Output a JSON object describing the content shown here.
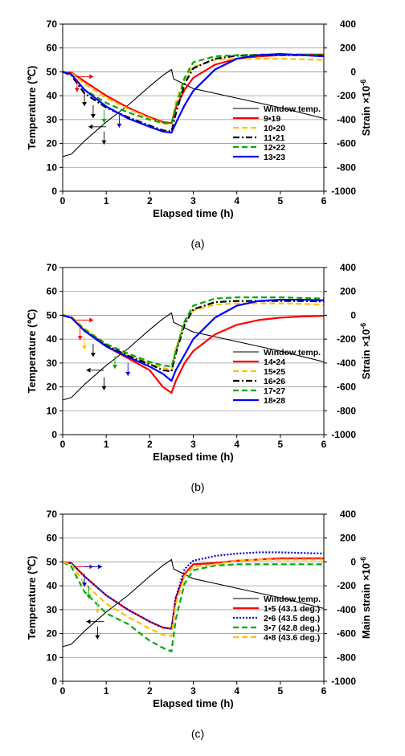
{
  "chart_data": [
    {
      "type": "line",
      "panel_label": "(a)",
      "xlabel": "Elapsed time (h)",
      "ylabel": "Temperature (℃)",
      "y2label_main": "Strain ×10",
      "y2label_exp": "-6",
      "xlim": [
        0,
        6
      ],
      "ylim": [
        0,
        70
      ],
      "y2lim": [
        -1000,
        400
      ],
      "x_ticks": [
        "0",
        "1",
        "2",
        "3",
        "4",
        "5",
        "6"
      ],
      "y_ticks": [
        "0",
        "10",
        "20",
        "30",
        "40",
        "50",
        "60",
        "70"
      ],
      "y2_ticks": [
        "-1000",
        "-800",
        "-600",
        "-400",
        "-200",
        "0",
        "200",
        "400"
      ],
      "grid": "horizontal",
      "legend_position": "right",
      "series": [
        {
          "name": "Window temp.",
          "axis": "left",
          "color": "#000000",
          "dash": "solid",
          "x": [
            0,
            0.2,
            0.5,
            1.0,
            1.5,
            2.0,
            2.3,
            2.5,
            2.55,
            3.0,
            4.0,
            5.0,
            6.0
          ],
          "y": [
            14.5,
            15.5,
            21,
            29,
            36,
            44,
            48.5,
            51,
            47,
            43,
            39,
            35,
            30.5
          ]
        },
        {
          "name": "9•19",
          "axis": "right",
          "color": "#ff0000",
          "dash": "solid",
          "x": [
            0,
            0.2,
            0.5,
            1.0,
            1.5,
            2.0,
            2.3,
            2.5,
            2.6,
            2.8,
            3.0,
            3.5,
            4.0,
            4.5,
            5.0,
            5.5,
            6.0
          ],
          "y": [
            0,
            -5,
            -80,
            -200,
            -300,
            -380,
            -420,
            -430,
            -300,
            -150,
            -50,
            60,
            110,
            130,
            140,
            145,
            145
          ]
        },
        {
          "name": "10•20",
          "axis": "right",
          "color": "#ffc000",
          "dash": "dash",
          "x": [
            0,
            0.2,
            0.5,
            1.0,
            1.5,
            2.0,
            2.3,
            2.5,
            2.6,
            2.8,
            3.0,
            3.5,
            4.0,
            4.5,
            5.0,
            5.5,
            6.0
          ],
          "y": [
            0,
            -10,
            -100,
            -220,
            -310,
            -390,
            -430,
            -440,
            -250,
            -60,
            40,
            100,
            110,
            110,
            110,
            105,
            100
          ]
        },
        {
          "name": "11•21",
          "axis": "right",
          "color": "#000000",
          "dash": "dashdot",
          "x": [
            0,
            0.2,
            0.5,
            1.0,
            1.5,
            2.0,
            2.3,
            2.5,
            2.6,
            2.8,
            3.0,
            3.5,
            4.0,
            4.5,
            5.0,
            5.5,
            6.0
          ],
          "y": [
            0,
            -30,
            -180,
            -300,
            -380,
            -450,
            -490,
            -500,
            -350,
            -100,
            30,
            110,
            135,
            140,
            140,
            140,
            135
          ]
        },
        {
          "name": "12•22",
          "axis": "right",
          "color": "#00aa00",
          "dash": "dash",
          "x": [
            0,
            0.2,
            0.5,
            1.0,
            1.5,
            2.0,
            2.3,
            2.5,
            2.6,
            2.8,
            3.0,
            3.5,
            4.0,
            4.5,
            5.0,
            5.5,
            6.0
          ],
          "y": [
            0,
            -20,
            -150,
            -260,
            -340,
            -400,
            -430,
            -430,
            -300,
            -50,
            80,
            130,
            140,
            145,
            145,
            145,
            140
          ]
        },
        {
          "name": "13•23",
          "axis": "right",
          "color": "#0000ff",
          "dash": "solid",
          "x": [
            0,
            0.2,
            0.5,
            1.0,
            1.5,
            2.0,
            2.3,
            2.5,
            2.6,
            2.8,
            3.0,
            3.5,
            4.0,
            4.5,
            5.0,
            5.5,
            6.0
          ],
          "y": [
            0,
            -20,
            -150,
            -290,
            -390,
            -460,
            -500,
            -510,
            -430,
            -280,
            -160,
            20,
            110,
            140,
            150,
            140,
            130
          ]
        }
      ]
    },
    {
      "type": "line",
      "panel_label": "(b)",
      "xlabel": "Elapsed time (h)",
      "ylabel": "Temperature (℃)",
      "y2label_main": "Strain ×10",
      "y2label_exp": "-6",
      "xlim": [
        0,
        6
      ],
      "ylim": [
        0,
        70
      ],
      "y2lim": [
        -1000,
        400
      ],
      "x_ticks": [
        "0",
        "1",
        "2",
        "3",
        "4",
        "5",
        "6"
      ],
      "y_ticks": [
        "0",
        "10",
        "20",
        "30",
        "40",
        "50",
        "60",
        "70"
      ],
      "y2_ticks": [
        "-1000",
        "-800",
        "-600",
        "-400",
        "-200",
        "0",
        "200",
        "400"
      ],
      "grid": "horizontal",
      "legend_position": "right",
      "series": [
        {
          "name": "Window temp.",
          "axis": "left",
          "color": "#000000",
          "dash": "solid",
          "x": [
            0,
            0.2,
            0.5,
            1.0,
            1.5,
            2.0,
            2.3,
            2.5,
            2.55,
            3.0,
            4.0,
            5.0,
            6.0
          ],
          "y": [
            14.5,
            15.5,
            21,
            29,
            36,
            44,
            48.5,
            51,
            47,
            43,
            39,
            35,
            30.5
          ]
        },
        {
          "name": "14•24",
          "axis": "right",
          "color": "#ff0000",
          "dash": "solid",
          "x": [
            0,
            0.2,
            0.5,
            1.0,
            1.5,
            2.0,
            2.3,
            2.5,
            2.6,
            2.8,
            3.0,
            3.5,
            4.0,
            4.5,
            5.0,
            5.5,
            6.0
          ],
          "y": [
            0,
            -20,
            -130,
            -260,
            -360,
            -460,
            -600,
            -650,
            -550,
            -400,
            -300,
            -160,
            -80,
            -40,
            -20,
            -10,
            -5
          ]
        },
        {
          "name": "15•25",
          "axis": "right",
          "color": "#ffc000",
          "dash": "dash",
          "x": [
            0,
            0.2,
            0.5,
            1.0,
            1.5,
            2.0,
            2.3,
            2.5,
            2.6,
            2.8,
            3.0,
            3.5,
            4.0,
            4.5,
            5.0,
            5.5,
            6.0
          ],
          "y": [
            0,
            -10,
            -110,
            -240,
            -330,
            -400,
            -440,
            -460,
            -280,
            -60,
            40,
            90,
            100,
            100,
            100,
            95,
            90
          ]
        },
        {
          "name": "16•26",
          "axis": "right",
          "color": "#000000",
          "dash": "dashdot",
          "x": [
            0,
            0.2,
            0.5,
            1.0,
            1.5,
            2.0,
            2.3,
            2.5,
            2.6,
            2.8,
            3.0,
            3.5,
            4.0,
            4.5,
            5.0,
            5.5,
            6.0
          ],
          "y": [
            0,
            -20,
            -130,
            -250,
            -340,
            -410,
            -460,
            -470,
            -320,
            -80,
            50,
            110,
            120,
            120,
            120,
            120,
            115
          ]
        },
        {
          "name": "17•27",
          "axis": "right",
          "color": "#00aa00",
          "dash": "dash",
          "x": [
            0,
            0.2,
            0.5,
            1.0,
            1.5,
            2.0,
            2.3,
            2.5,
            2.6,
            2.8,
            3.0,
            3.5,
            4.0,
            4.5,
            5.0,
            5.5,
            6.0
          ],
          "y": [
            0,
            -20,
            -120,
            -240,
            -320,
            -390,
            -420,
            -430,
            -300,
            -50,
            80,
            140,
            150,
            150,
            150,
            145,
            140
          ]
        },
        {
          "name": "18•28",
          "axis": "right",
          "color": "#0000ff",
          "dash": "solid",
          "x": [
            0,
            0.2,
            0.5,
            1.0,
            1.5,
            2.0,
            2.3,
            2.5,
            2.6,
            2.8,
            3.0,
            3.5,
            4.0,
            4.5,
            5.0,
            5.5,
            6.0
          ],
          "y": [
            0,
            -20,
            -130,
            -260,
            -350,
            -430,
            -490,
            -550,
            -460,
            -330,
            -200,
            -20,
            80,
            120,
            130,
            130,
            125
          ]
        }
      ]
    },
    {
      "type": "line",
      "panel_label": "(c)",
      "xlabel": "Elapsed time (h)",
      "ylabel": "Temperature (℃)",
      "y2label_main": "Main strain ×10",
      "y2label_exp": "-6",
      "xlim": [
        0,
        6
      ],
      "ylim": [
        0,
        70
      ],
      "y2lim": [
        -1000,
        400
      ],
      "x_ticks": [
        "0",
        "1",
        "2",
        "3",
        "4",
        "5",
        "6"
      ],
      "y_ticks": [
        "0",
        "10",
        "20",
        "30",
        "40",
        "50",
        "60",
        "70"
      ],
      "y2_ticks": [
        "-1000",
        "-800",
        "-600",
        "-400",
        "-200",
        "0",
        "200",
        "400"
      ],
      "grid": "horizontal",
      "legend_position": "right",
      "series": [
        {
          "name": "Window temp.",
          "axis": "left",
          "color": "#000000",
          "dash": "solid",
          "x": [
            0,
            0.2,
            0.5,
            1.0,
            1.5,
            2.0,
            2.3,
            2.5,
            2.55,
            3.0,
            4.0,
            5.0,
            6.0
          ],
          "y": [
            14.5,
            15.5,
            21,
            29,
            36,
            44,
            48.5,
            51,
            47,
            43,
            39,
            35,
            30.5
          ]
        },
        {
          "name": "1•5 (43.1 deg.)",
          "axis": "right",
          "color": "#ff0000",
          "dash": "solid",
          "x": [
            0,
            0.2,
            0.5,
            1.0,
            1.5,
            2.0,
            2.3,
            2.5,
            2.6,
            2.8,
            3.0,
            3.5,
            4.0,
            4.5,
            5.0,
            5.5,
            6.0
          ],
          "y": [
            0,
            -10,
            -120,
            -280,
            -400,
            -500,
            -550,
            -560,
            -300,
            -100,
            -20,
            -10,
            10,
            20,
            30,
            30,
            30
          ]
        },
        {
          "name": "2•6 (43.5 deg.)",
          "axis": "right",
          "color": "#0000cc",
          "dash": "dot",
          "x": [
            0,
            0.2,
            0.5,
            1.0,
            1.5,
            2.0,
            2.3,
            2.5,
            2.6,
            2.8,
            3.0,
            3.5,
            4.0,
            4.5,
            5.0,
            5.5,
            6.0
          ],
          "y": [
            0,
            -10,
            -120,
            -280,
            -400,
            -500,
            -550,
            -560,
            -300,
            -60,
            10,
            50,
            70,
            80,
            80,
            75,
            70
          ]
        },
        {
          "name": "3•7 (42.8 deg.)",
          "axis": "right",
          "color": "#00aa00",
          "dash": "dash",
          "x": [
            0,
            0.2,
            0.5,
            1.0,
            1.5,
            2.0,
            2.3,
            2.5,
            2.6,
            2.8,
            3.0,
            3.5,
            4.0,
            4.5,
            5.0,
            5.5,
            6.0
          ],
          "y": [
            0,
            -40,
            -250,
            -430,
            -520,
            -660,
            -720,
            -750,
            -480,
            -180,
            -70,
            -30,
            -20,
            -20,
            -20,
            -20,
            -20
          ]
        },
        {
          "name": "4•8 (43.6 deg.)",
          "axis": "right",
          "color": "#ffc000",
          "dash": "dash",
          "x": [
            0,
            0.2,
            0.5,
            1.0,
            1.5,
            2.0,
            2.3,
            2.5,
            2.6,
            2.8,
            3.0,
            3.5,
            4.0,
            4.5,
            5.0,
            5.5,
            6.0
          ],
          "y": [
            0,
            -20,
            -180,
            -350,
            -460,
            -560,
            -610,
            -620,
            -350,
            -120,
            -40,
            -20,
            10,
            20,
            20,
            20,
            20
          ]
        }
      ]
    }
  ]
}
